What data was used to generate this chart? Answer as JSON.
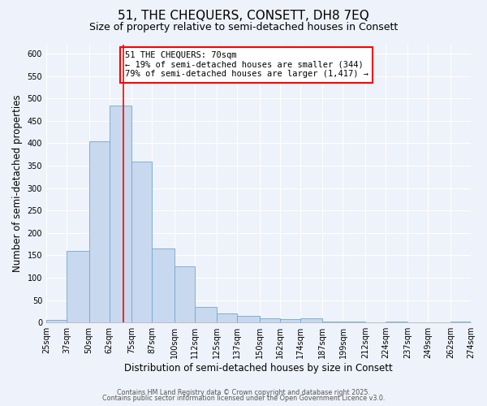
{
  "title": "51, THE CHEQUERS, CONSETT, DH8 7EQ",
  "subtitle": "Size of property relative to semi-detached houses in Consett",
  "xlabel": "Distribution of semi-detached houses by size in Consett",
  "ylabel": "Number of semi-detached properties",
  "bar_color": "#c8d8ee",
  "bar_edge_color": "#6fa8d0",
  "background_color": "#eef2fa",
  "grid_color": "#ffffff",
  "bins": [
    25,
    37,
    50,
    62,
    75,
    87,
    100,
    112,
    125,
    137,
    150,
    162,
    174,
    187,
    199,
    212,
    224,
    237,
    249,
    262,
    274
  ],
  "values": [
    5,
    160,
    405,
    485,
    360,
    165,
    125,
    35,
    20,
    15,
    10,
    8,
    10,
    2,
    2,
    0,
    2,
    0,
    0,
    2
  ],
  "tick_labels": [
    "25sqm",
    "37sqm",
    "50sqm",
    "62sqm",
    "75sqm",
    "87sqm",
    "100sqm",
    "112sqm",
    "125sqm",
    "137sqm",
    "150sqm",
    "162sqm",
    "174sqm",
    "187sqm",
    "199sqm",
    "212sqm",
    "224sqm",
    "237sqm",
    "249sqm",
    "262sqm",
    "274sqm"
  ],
  "ylim": [
    0,
    620
  ],
  "yticks": [
    0,
    50,
    100,
    150,
    200,
    250,
    300,
    350,
    400,
    450,
    500,
    550,
    600
  ],
  "property_line_x": 70,
  "annotation_title": "51 THE CHEQUERS: 70sqm",
  "annotation_line1": "← 19% of semi-detached houses are smaller (344)",
  "annotation_line2": "79% of semi-detached houses are larger (1,417) →",
  "footer1": "Contains HM Land Registry data © Crown copyright and database right 2025.",
  "footer2": "Contains public sector information licensed under the Open Government Licence v3.0.",
  "title_fontsize": 11,
  "subtitle_fontsize": 9,
  "axis_label_fontsize": 8.5,
  "tick_fontsize": 7,
  "annotation_fontsize": 7.5
}
